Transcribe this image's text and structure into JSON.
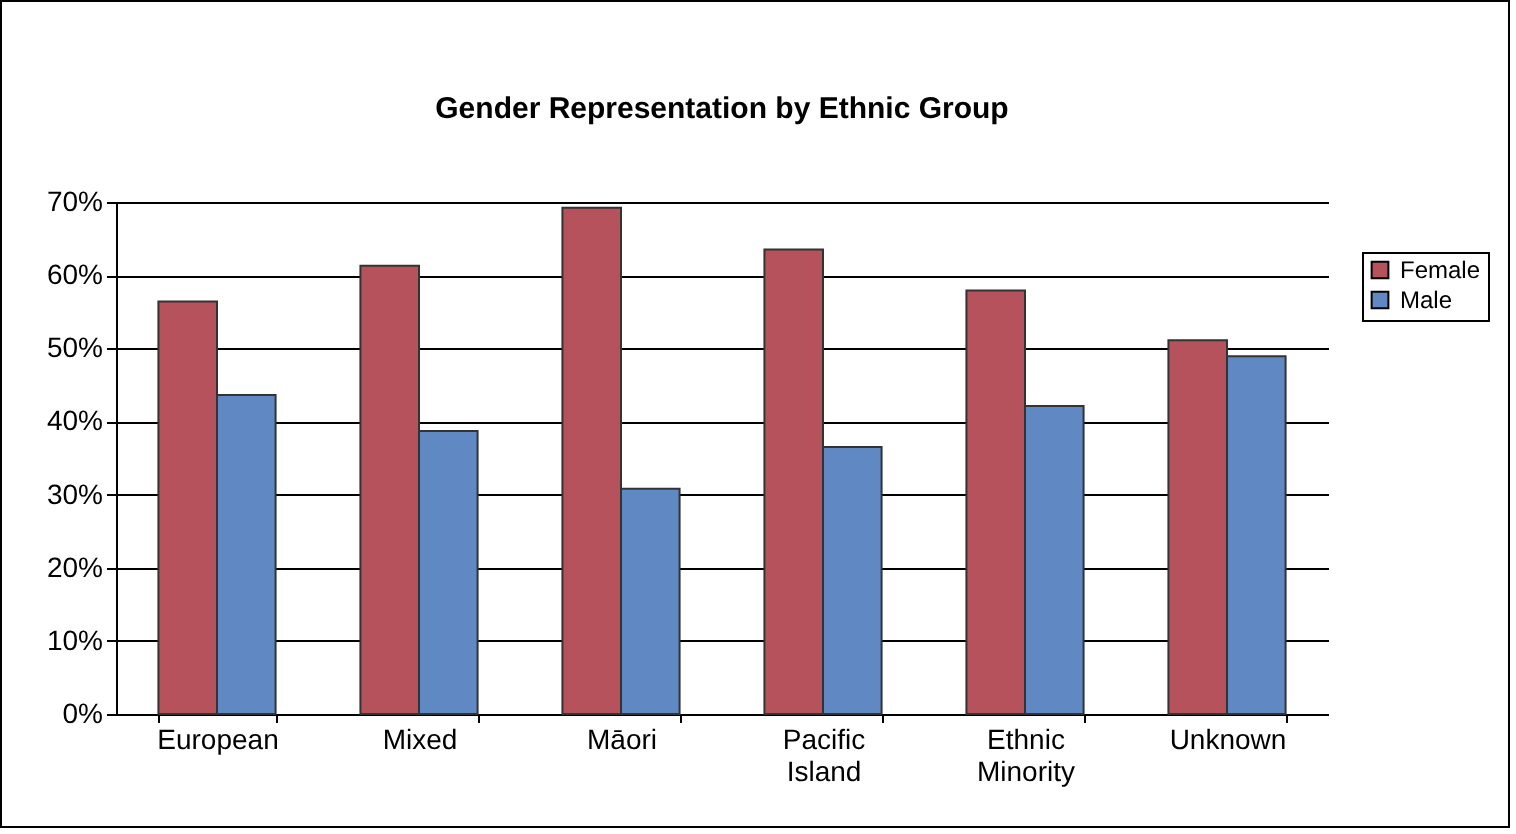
{
  "chart_data": {
    "type": "bar",
    "title": "Gender Representation by Ethnic Group",
    "categories": [
      "European",
      "Mixed",
      "Māori",
      "Pacific Island",
      "Ethnic Minority",
      "Unknown"
    ],
    "series": [
      {
        "name": "Female",
        "color": "#b5525c",
        "values": [
          56.4,
          61.3,
          69.2,
          63.5,
          57.9,
          51.1
        ]
      },
      {
        "name": "Male",
        "color": "#6089c4",
        "values": [
          43.6,
          38.7,
          30.8,
          36.5,
          42.1,
          48.9
        ]
      }
    ],
    "ylim": [
      0,
      70
    ],
    "yticks": [
      {
        "value": 0,
        "label": "0%"
      },
      {
        "value": 10,
        "label": "10%"
      },
      {
        "value": 20,
        "label": "20%"
      },
      {
        "value": 30,
        "label": "30%"
      },
      {
        "value": 40,
        "label": "40%"
      },
      {
        "value": 50,
        "label": "50%"
      },
      {
        "value": 60,
        "label": "60%"
      },
      {
        "value": 70,
        "label": "70%"
      }
    ],
    "grid": "y",
    "legend": "top right"
  }
}
